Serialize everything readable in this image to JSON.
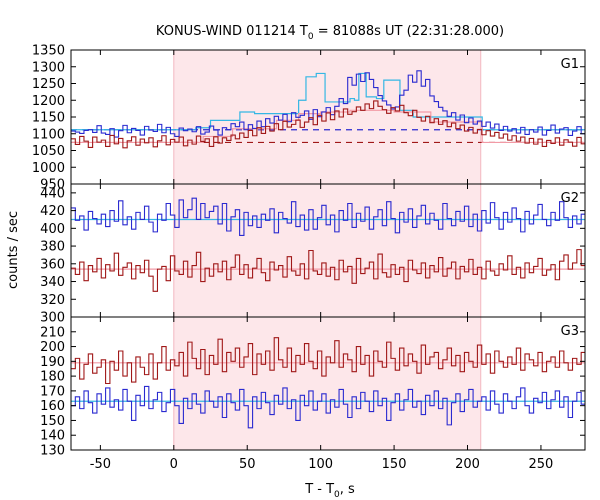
{
  "chart_data": {
    "type": "line",
    "title": "KONUS-WIND 011214 T",
    "title_sub": "0",
    "title_rest": " = 81088s UT (22:31:28.000)",
    "xlabel": "T - T",
    "xlabel_sub": "0",
    "xlabel_rest": ", s",
    "ylabel": "counts / sec",
    "xlim": [
      -70,
      280
    ],
    "x_ticks": [
      -50,
      0,
      50,
      100,
      150,
      200,
      250
    ],
    "shaded_interval": [
      0,
      209
    ],
    "colors": {
      "shade": "#fde7ea",
      "blue": "#2a2ad0",
      "red": "#a01818",
      "cyan": "#35b7e4",
      "pink": "#f29aa6"
    },
    "panels": [
      {
        "label": "G1",
        "ylim": [
          950,
          1350
        ],
        "y_ticks": [
          950,
          1000,
          1050,
          1100,
          1150,
          1200,
          1250,
          1300,
          1350
        ],
        "blue_background": 1112,
        "red_background": 1074,
        "series": [
          {
            "name": "G1 blue",
            "color": "blue",
            "bin": 2.944,
            "start": -70,
            "values": [
              1108,
              1105,
              1101,
              1110,
              1112,
              1104,
              1124,
              1102,
              1098,
              1115,
              1090,
              1109,
              1125,
              1103,
              1116,
              1110,
              1096,
              1122,
              1111,
              1107,
              1128,
              1103,
              1119,
              1100,
              1092,
              1117,
              1109,
              1114,
              1106,
              1121,
              1099,
              1105,
              1123,
              1111,
              1096,
              1118,
              1112,
              1130,
              1121,
              1135,
              1112,
              1127,
              1116,
              1138,
              1121,
              1145,
              1132,
              1152,
              1141,
              1158,
              1136,
              1163,
              1149,
              1155,
              1168,
              1143,
              1172,
              1151,
              1165,
              1178,
              1157,
              1182,
              1205,
              1190,
              1268,
              1245,
              1278,
              1256,
              1282,
              1262,
              1238,
              1214,
              1198,
              1186,
              1174,
              1180,
              1215,
              1230,
              1275,
              1254,
              1288,
              1242,
              1262,
              1213,
              1196,
              1179,
              1168,
              1152,
              1163,
              1141,
              1156,
              1133,
              1147,
              1129,
              1138,
              1122,
              1135,
              1117,
              1129,
              1110,
              1122,
              1108,
              1115,
              1102,
              1119,
              1098,
              1112,
              1105,
              1120,
              1096,
              1110,
              1126,
              1102,
              1114,
              1118,
              1095,
              1108,
              1121,
              1100,
              1113,
              1096,
              1110
            ]
          },
          {
            "name": "G1 red",
            "color": "red",
            "bin": 2.944,
            "start": -70,
            "values": [
              1085,
              1068,
              1092,
              1078,
              1059,
              1090,
              1075,
              1081,
              1062,
              1095,
              1070,
              1086,
              1058,
              1079,
              1091,
              1066,
              1084,
              1073,
              1088,
              1061,
              1079,
              1094,
              1067,
              1083,
              1075,
              1090,
              1064,
              1081,
              1069,
              1093,
              1077,
              1085,
              1062,
              1091,
              1072,
              1088,
              1080,
              1096,
              1085,
              1102,
              1089,
              1110,
              1094,
              1118,
              1101,
              1122,
              1108,
              1130,
              1112,
              1137,
              1120,
              1128,
              1141,
              1119,
              1135,
              1148,
              1127,
              1155,
              1138,
              1162,
              1142,
              1168,
              1150,
              1174,
              1158,
              1166,
              1180,
              1170,
              1189,
              1175,
              1198,
              1182,
              1172,
              1161,
              1178,
              1168,
              1185,
              1163,
              1154,
              1170,
              1149,
              1138,
              1152,
              1133,
              1145,
              1128,
              1139,
              1121,
              1132,
              1115,
              1126,
              1108,
              1119,
              1102,
              1113,
              1097,
              1109,
              1093,
              1104,
              1087,
              1099,
              1081,
              1094,
              1078,
              1090,
              1072,
              1086,
              1069,
              1084,
              1062,
              1080,
              1071,
              1088,
              1066,
              1082,
              1075,
              1063,
              1089,
              1070,
              1058,
              1084,
              1072
            ]
          },
          {
            "name": "G1 cyan",
            "color": "cyan",
            "step": true,
            "x": [
              -70,
              15,
              25,
              45,
              55,
              85,
              90,
              97,
              103,
              120,
              123,
              126,
              131,
              138,
              143,
              150,
              154,
              163,
              210,
              280
            ],
            "values": [
              1112,
              1118,
              1140,
              1165,
              1160,
              1200,
              1270,
              1280,
              1195,
              1205,
              1200,
              1280,
              1210,
              1205,
              1260,
              1260,
              1170,
              1150,
              1112,
              1112
            ]
          },
          {
            "name": "G1 pink",
            "color": "pink",
            "step": true,
            "x": [
              -70,
              20,
              40,
              70,
              85,
              100,
              120,
              150,
              175,
              210,
              280
            ],
            "values": [
              1074,
              1092,
              1115,
              1140,
              1160,
              1165,
              1170,
              1165,
              1135,
              1074,
              1074
            ]
          }
        ]
      },
      {
        "label": "G2",
        "ylim": [
          300,
          450
        ],
        "y_ticks": [
          300,
          320,
          340,
          360,
          380,
          400,
          420,
          440
        ],
        "series": [
          {
            "name": "G2 blue",
            "color": "blue",
            "bin": 2.944,
            "start": -70,
            "values": [
              423,
              409,
              414,
              398,
              419,
              411,
              405,
              416,
              402,
              420,
              408,
              431,
              404,
              413,
              399,
              418,
              410,
              425,
              407,
              396,
              416,
              409,
              428,
              415,
              401,
              432,
              412,
              421,
              434,
              410,
              428,
              412,
              419,
              425,
              405,
              428,
              397,
              413,
              421,
              392,
              418,
              403,
              414,
              401,
              416,
              409,
              422,
              395,
              418,
              411,
              406,
              430,
              402,
              415,
              398,
              421,
              399,
              412,
              426,
              404,
              415,
              396,
              420,
              409,
              428,
              401,
              417,
              408,
              424,
              399,
              413,
              421,
              403,
              430,
              411,
              395,
              418,
              407,
              422,
              401,
              414,
              426,
              405,
              417,
              409,
              399,
              428,
              411,
              403,
              419,
              408,
              425,
              402,
              416,
              397,
              420,
              406,
              429,
              412,
              399,
              418,
              407,
              423,
              411,
              396,
              419,
              405,
              415,
              427,
              410,
              403,
              418,
              409,
              430,
              412,
              401,
              414,
              405,
              416,
              420,
              403,
              412
            ]
          },
          {
            "name": "G2 red",
            "color": "red",
            "bin": 2.944,
            "start": -70,
            "values": [
              355,
              348,
              362,
              341,
              358,
              351,
              366,
              344,
              359,
              352,
              372,
              347,
              356,
              361,
              343,
              358,
              350,
              364,
              346,
              329,
              354,
              357,
              341,
              369,
              352,
              348,
              363,
              345,
              358,
              373,
              340,
              355,
              346,
              360,
              351,
              363,
              342,
              356,
              370,
              348,
              359,
              344,
              355,
              366,
              350,
              341,
              362,
              353,
              358,
              345,
              368,
              352,
              347,
              360,
              343,
              375,
              352,
              348,
              361,
              346,
              356,
              342,
              364,
              351,
              357,
              338,
              366,
              349,
              355,
              362,
              343,
              371,
              350,
              345,
              359,
              348,
              356,
              340,
              364,
              353,
              349,
              361,
              344,
              358,
              351,
              367,
              346,
              355,
              362,
              343,
              357,
              351,
              365,
              348,
              356,
              343,
              363,
              352,
              347,
              360,
              353,
              369,
              348,
              356,
              344,
              361,
              350,
              357,
              366,
              347,
              353,
              359,
              342,
              363,
              370,
              354,
              361,
              376,
              358,
              382,
              364,
              376
            ]
          },
          {
            "name": "G2 cyan",
            "color": "cyan",
            "step": true,
            "x": [
              -70,
              280
            ],
            "values": [
              410,
              410
            ]
          },
          {
            "name": "G2 pink",
            "color": "pink",
            "step": true,
            "x": [
              -70,
              280
            ],
            "values": [
              354,
              354
            ]
          }
        ]
      },
      {
        "label": "G3",
        "ylim": [
          130,
          220
        ],
        "y_ticks": [
          130,
          140,
          150,
          160,
          170,
          180,
          190,
          200,
          210
        ],
        "series": [
          {
            "name": "G3 blue",
            "color": "blue",
            "bin": 2.944,
            "start": -70,
            "values": [
              160,
              166,
              158,
              170,
              162,
              155,
              168,
              161,
              172,
              159,
              164,
              157,
              171,
              163,
              150,
              167,
              160,
              173,
              158,
              164,
              169,
              156,
              162,
              171,
              160,
              148,
              165,
              158,
              168,
              161,
              155,
              170,
              163,
              159,
              166,
              152,
              168,
              162,
              157,
              171,
              160,
              145,
              166,
              158,
              169,
              162,
              154,
              167,
              161,
              172,
              158,
              164,
              150,
              167,
              160,
              170,
              157,
              163,
              168,
              155,
              164,
              159,
              171,
              161,
              152,
              166,
              158,
              169,
              163,
              156,
              170,
              160,
              165,
              150,
              162,
              168,
              157,
              164,
              171,
              159,
              163,
              154,
              167,
              160,
              170,
              158,
              165,
              147,
              162,
              168,
              156,
              164,
              171,
              159,
              163,
              166,
              157,
              170,
              161,
              155,
              168,
              163,
              158,
              166,
              172,
              160,
              155,
              165,
              162,
              169,
              158,
              164,
              170,
              159,
              166,
              152,
              163,
              169,
              161,
              157,
              164,
              168
            ]
          },
          {
            "name": "G3 red",
            "color": "red",
            "bin": 2.944,
            "start": -70,
            "values": [
              185,
              192,
              178,
              188,
              195,
              182,
              186,
              191,
              175,
              190,
              184,
              197,
              180,
              189,
              176,
              193,
              186,
              181,
              195,
              178,
              189,
              200,
              184,
              191,
              187,
              196,
              180,
              203,
              192,
              185,
              198,
              181,
              194,
              188,
              205,
              183,
              196,
              190,
              199,
              186,
              193,
              202,
              181,
              195,
              188,
              197,
              184,
              206,
              191,
              186,
              199,
              183,
              194,
              188,
              202,
              190,
              185,
              197,
              180,
              193,
              189,
              204,
              186,
              195,
              191,
              183,
              200,
              188,
              194,
              180,
              197,
              190,
              186,
              203,
              192,
              184,
              199,
              187,
              195,
              190,
              182,
              201,
              188,
              193,
              196,
              185,
              191,
              199,
              187,
              194,
              183,
              196,
              190,
              186,
              201,
              188,
              195,
              182,
              197,
              190,
              186,
              193,
              188,
              199,
              184,
              195,
              191,
              187,
              196,
              183,
              190,
              193,
              186,
              197,
              189,
              184,
              192,
              188,
              196,
              203,
              194,
              206
            ]
          },
          {
            "name": "G3 cyan",
            "color": "cyan",
            "step": true,
            "x": [
              -70,
              280
            ],
            "values": [
              163,
              163
            ]
          },
          {
            "name": "G3 pink",
            "color": "pink",
            "step": true,
            "x": [
              -70,
              280
            ],
            "values": [
              189,
              189
            ]
          }
        ]
      }
    ]
  }
}
